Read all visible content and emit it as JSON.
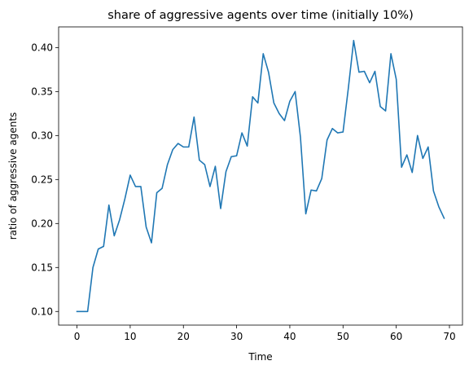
{
  "chart_data": {
    "type": "line",
    "title": "share of aggressive agents over time (initially 10%)",
    "xlabel": "Time",
    "ylabel": "ratio of aggressive agents",
    "xlim": [
      -3.45,
      72.45
    ],
    "ylim": [
      0.0845,
      0.4235
    ],
    "xticks": [
      0,
      10,
      20,
      30,
      40,
      50,
      60,
      70
    ],
    "xtick_labels": [
      "0",
      "10",
      "20",
      "30",
      "40",
      "50",
      "60",
      "70"
    ],
    "yticks": [
      0.1,
      0.15,
      0.2,
      0.25,
      0.3,
      0.35,
      0.4
    ],
    "ytick_labels": [
      "0.10",
      "0.15",
      "0.20",
      "0.25",
      "0.30",
      "0.35",
      "0.40"
    ],
    "grid": false,
    "series": [
      {
        "color": "#1f77b4",
        "x": [
          0,
          1,
          2,
          3,
          4,
          5,
          6,
          7,
          8,
          9,
          10,
          11,
          12,
          13,
          14,
          15,
          16,
          17,
          18,
          19,
          20,
          21,
          22,
          23,
          24,
          25,
          26,
          27,
          28,
          29,
          30,
          31,
          32,
          33,
          34,
          35,
          36,
          37,
          38,
          39,
          40,
          41,
          42,
          43,
          44,
          45,
          46,
          47,
          48,
          49,
          50,
          51,
          52,
          53,
          54,
          55,
          56,
          57,
          58,
          59,
          60,
          61,
          62,
          63,
          64,
          65,
          66,
          67,
          68,
          69
        ],
        "values": [
          0.1,
          0.1,
          0.1,
          0.15,
          0.171,
          0.174,
          0.221,
          0.186,
          0.204,
          0.228,
          0.255,
          0.242,
          0.242,
          0.196,
          0.178,
          0.235,
          0.24,
          0.267,
          0.284,
          0.291,
          0.287,
          0.287,
          0.321,
          0.272,
          0.267,
          0.242,
          0.265,
          0.217,
          0.259,
          0.276,
          0.277,
          0.303,
          0.288,
          0.344,
          0.337,
          0.393,
          0.372,
          0.337,
          0.325,
          0.317,
          0.339,
          0.35,
          0.298,
          0.211,
          0.238,
          0.237,
          0.251,
          0.295,
          0.308,
          0.303,
          0.304,
          0.354,
          0.408,
          0.372,
          0.373,
          0.36,
          0.373,
          0.333,
          0.328,
          0.393,
          0.364,
          0.264,
          0.278,
          0.258,
          0.3,
          0.274,
          0.287,
          0.237,
          0.219,
          0.206
        ]
      }
    ]
  }
}
